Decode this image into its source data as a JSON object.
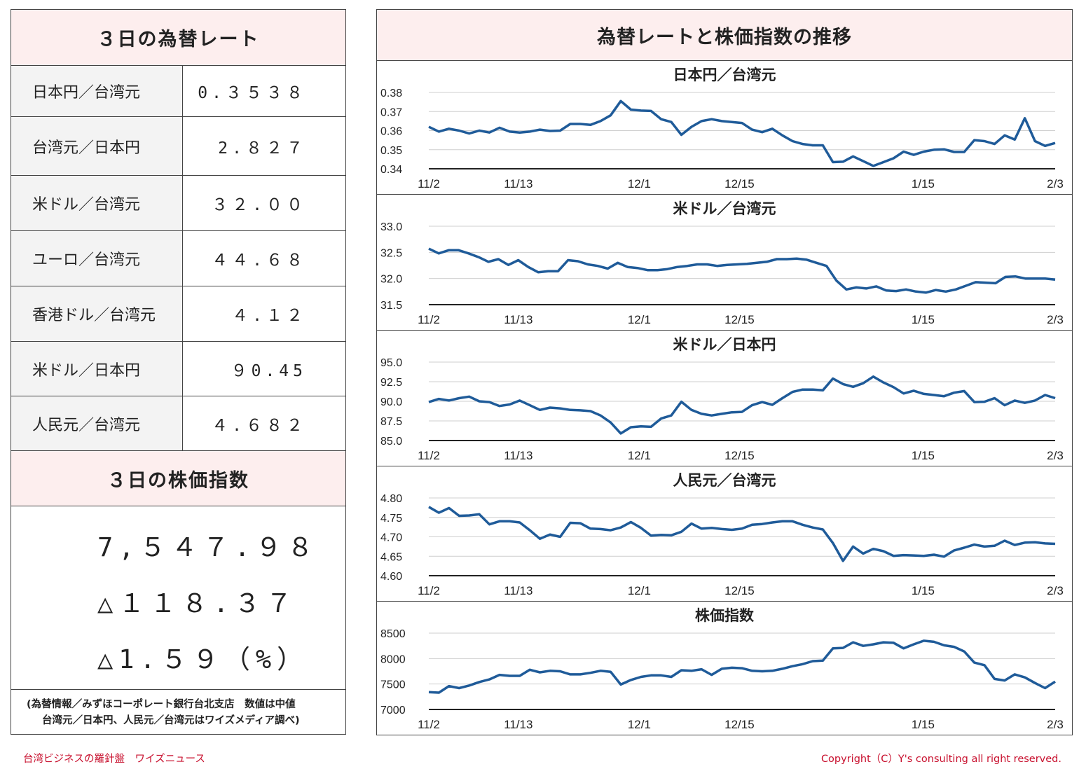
{
  "rates": {
    "header": "３日の為替レート",
    "rows": [
      {
        "label": "日本円／台湾元",
        "value": "0.３５３８"
      },
      {
        "label": "台湾元／日本円",
        "value": "2.８２７"
      },
      {
        "label": "米ドル／台湾元",
        "value": "３２.００"
      },
      {
        "label": "ユーロ／台湾元",
        "value": "４４.６８"
      },
      {
        "label": "香港ドル／台湾元",
        "value": "４.１２"
      },
      {
        "label": "米ドル／日本円",
        "value": "９0.45"
      },
      {
        "label": "人民元／台湾元",
        "value": "４.６８２"
      }
    ]
  },
  "stock": {
    "header": "３日の株価指数",
    "value": "7,５４７.９８",
    "change": "△１１８.３７",
    "change_pct": "△1.５９（%）"
  },
  "source_note": {
    "line1": "(為替情報／みずほコーポレート銀行台北支店　数値は中値",
    "line2": "台湾元／日本円、人民元／台湾元はワイズメディア調べ)"
  },
  "charts_title": "為替レートと株価指数の推移",
  "footer": {
    "left": "台湾ビジネスの羅針盤　ワイズニュース",
    "right": "Copyright（C）Y's consulting all right reserved."
  },
  "chart_data": [
    {
      "type": "line",
      "title": "日本円／台湾元",
      "x_ticks": [
        "11/2",
        "11/13",
        "12/1",
        "12/15",
        "1/15",
        "2/3"
      ],
      "ylim": [
        0.34,
        0.38
      ],
      "y_ticks": [
        "0.34",
        "0.35",
        "0.36",
        "0.37",
        "0.38"
      ],
      "grid": true,
      "color": "#1f5b99",
      "values": [
        0.362,
        0.3595,
        0.361,
        0.36,
        0.3585,
        0.36,
        0.359,
        0.3615,
        0.3595,
        0.359,
        0.3595,
        0.3605,
        0.3598,
        0.36,
        0.3635,
        0.3635,
        0.363,
        0.365,
        0.368,
        0.3755,
        0.371,
        0.3705,
        0.3703,
        0.366,
        0.3645,
        0.3578,
        0.362,
        0.365,
        0.366,
        0.365,
        0.3645,
        0.364,
        0.3605,
        0.3592,
        0.361,
        0.3575,
        0.3545,
        0.353,
        0.3523,
        0.3523,
        0.3435,
        0.3437,
        0.3465,
        0.344,
        0.3415,
        0.3435,
        0.3455,
        0.349,
        0.3473,
        0.349,
        0.35,
        0.3502,
        0.3488,
        0.3488,
        0.355,
        0.3545,
        0.353,
        0.3575,
        0.3553,
        0.3665,
        0.3545,
        0.352,
        0.3535
      ]
    },
    {
      "type": "line",
      "title": "米ドル／台湾元",
      "x_ticks": [
        "11/2",
        "11/13",
        "12/1",
        "12/15",
        "1/15",
        "2/3"
      ],
      "ylim": [
        31.5,
        33.0
      ],
      "y_ticks": [
        "31.5",
        "32.0",
        "32.5",
        "33.0"
      ],
      "grid": true,
      "color": "#1f5b99",
      "values": [
        32.57,
        32.48,
        32.54,
        32.54,
        32.48,
        32.41,
        32.32,
        32.37,
        32.26,
        32.35,
        32.22,
        32.12,
        32.14,
        32.14,
        32.35,
        32.33,
        32.27,
        32.24,
        32.19,
        32.3,
        32.22,
        32.2,
        32.16,
        32.16,
        32.18,
        32.22,
        32.24,
        32.27,
        32.27,
        32.24,
        32.26,
        32.27,
        32.28,
        32.3,
        32.32,
        32.37,
        32.37,
        32.38,
        32.36,
        32.3,
        32.24,
        31.96,
        31.79,
        31.83,
        31.81,
        31.85,
        31.77,
        31.76,
        31.79,
        31.75,
        31.73,
        31.78,
        31.75,
        31.79,
        31.86,
        31.93,
        31.92,
        31.91,
        32.03,
        32.04,
        32.0,
        32.0,
        32.0,
        31.98
      ]
    },
    {
      "type": "line",
      "title": "米ドル／日本円",
      "x_ticks": [
        "11/2",
        "11/13",
        "12/1",
        "12/15",
        "1/15",
        "2/3"
      ],
      "ylim": [
        85.0,
        95.0
      ],
      "y_ticks": [
        "85.0",
        "87.5",
        "90.0",
        "92.5",
        "95.0"
      ],
      "grid": true,
      "color": "#1f5b99",
      "values": [
        89.9,
        90.3,
        90.1,
        90.4,
        90.6,
        90.0,
        89.9,
        89.4,
        89.6,
        90.1,
        89.5,
        88.9,
        89.2,
        89.1,
        88.9,
        88.85,
        88.75,
        88.2,
        87.3,
        85.9,
        86.7,
        86.8,
        86.75,
        87.8,
        88.2,
        89.95,
        88.9,
        88.4,
        88.2,
        88.4,
        88.6,
        88.65,
        89.5,
        89.9,
        89.55,
        90.4,
        91.2,
        91.5,
        91.5,
        91.4,
        92.9,
        92.2,
        91.85,
        92.3,
        93.15,
        92.4,
        91.8,
        91.0,
        91.35,
        90.95,
        90.8,
        90.65,
        91.1,
        91.3,
        89.9,
        89.95,
        90.4,
        89.5,
        90.1,
        89.8,
        90.1,
        90.8,
        90.4
      ]
    },
    {
      "type": "line",
      "title": "人民元／台湾元",
      "x_ticks": [
        "11/2",
        "11/13",
        "12/1",
        "12/15",
        "1/15",
        "2/3"
      ],
      "ylim": [
        4.6,
        4.8
      ],
      "y_ticks": [
        "4.60",
        "4.65",
        "4.70",
        "4.75",
        "4.80"
      ],
      "grid": true,
      "color": "#1f5b99",
      "values": [
        4.777,
        4.762,
        4.774,
        4.754,
        4.755,
        4.758,
        4.732,
        4.74,
        4.74,
        4.737,
        4.717,
        4.695,
        4.706,
        4.7,
        4.736,
        4.735,
        4.721,
        4.72,
        4.717,
        4.724,
        4.738,
        4.723,
        4.703,
        4.705,
        4.704,
        4.713,
        4.734,
        4.721,
        4.723,
        4.72,
        4.718,
        4.721,
        4.731,
        4.733,
        4.737,
        4.74,
        4.74,
        4.731,
        4.724,
        4.719,
        4.684,
        4.638,
        4.675,
        4.657,
        4.669,
        4.663,
        4.651,
        4.653,
        4.652,
        4.651,
        4.654,
        4.649,
        4.665,
        4.672,
        4.68,
        4.675,
        4.677,
        4.69,
        4.679,
        4.685,
        4.686,
        4.683,
        4.682
      ]
    },
    {
      "type": "line",
      "title": "株価指数",
      "x_ticks": [
        "11/2",
        "11/13",
        "12/1",
        "12/15",
        "1/15",
        "2/3"
      ],
      "ylim": [
        7000,
        8500
      ],
      "y_ticks": [
        "7000",
        "7500",
        "8000",
        "8500"
      ],
      "grid": true,
      "color": "#1f5b99",
      "values": [
        7340,
        7330,
        7460,
        7420,
        7470,
        7540,
        7590,
        7680,
        7660,
        7660,
        7780,
        7730,
        7760,
        7750,
        7690,
        7690,
        7720,
        7760,
        7740,
        7490,
        7580,
        7640,
        7670,
        7670,
        7640,
        7770,
        7760,
        7790,
        7680,
        7800,
        7820,
        7810,
        7760,
        7750,
        7760,
        7800,
        7850,
        7890,
        7950,
        7960,
        8200,
        8210,
        8320,
        8250,
        8280,
        8320,
        8310,
        8200,
        8280,
        8350,
        8330,
        8260,
        8230,
        8140,
        7920,
        7870,
        7600,
        7570,
        7690,
        7630,
        7520,
        7420,
        7548
      ]
    }
  ]
}
